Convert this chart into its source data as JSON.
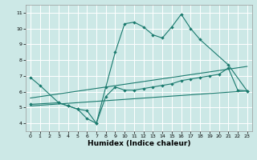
{
  "xlabel": "Humidex (Indice chaleur)",
  "bg_color": "#cce8e6",
  "grid_color": "#ffffff",
  "line_color": "#1a7a6e",
  "xlim": [
    -0.5,
    23.5
  ],
  "ylim": [
    3.5,
    11.5
  ],
  "xticks": [
    0,
    1,
    2,
    3,
    4,
    5,
    6,
    7,
    8,
    9,
    10,
    11,
    12,
    13,
    14,
    15,
    16,
    17,
    18,
    19,
    20,
    21,
    22,
    23
  ],
  "yticks": [
    4,
    5,
    6,
    7,
    8,
    9,
    10,
    11
  ],
  "line1_x": [
    0,
    1,
    3,
    4,
    5,
    6,
    7,
    8,
    9,
    10,
    11,
    12,
    13,
    14,
    15,
    16,
    17,
    18,
    21,
    23
  ],
  "line1_y": [
    6.9,
    6.4,
    5.3,
    5.1,
    4.9,
    4.3,
    4.0,
    6.3,
    8.5,
    10.3,
    10.4,
    10.1,
    9.6,
    9.4,
    10.1,
    10.9,
    10.0,
    9.3,
    7.7,
    6.05
  ],
  "line2_x": [
    0,
    3,
    4,
    5,
    6,
    7,
    8,
    9,
    10,
    11,
    12,
    13,
    14,
    15,
    16,
    17,
    18,
    19,
    20,
    21,
    22,
    23
  ],
  "line2_y": [
    5.2,
    5.3,
    5.1,
    4.9,
    4.8,
    4.0,
    5.7,
    6.3,
    6.1,
    6.1,
    6.2,
    6.3,
    6.4,
    6.5,
    6.7,
    6.8,
    6.9,
    7.0,
    7.1,
    7.5,
    6.1,
    6.05
  ],
  "line3_x": [
    0,
    23
  ],
  "line3_y": [
    5.6,
    7.6
  ],
  "line4_x": [
    0,
    23
  ],
  "line4_y": [
    5.1,
    6.05
  ]
}
